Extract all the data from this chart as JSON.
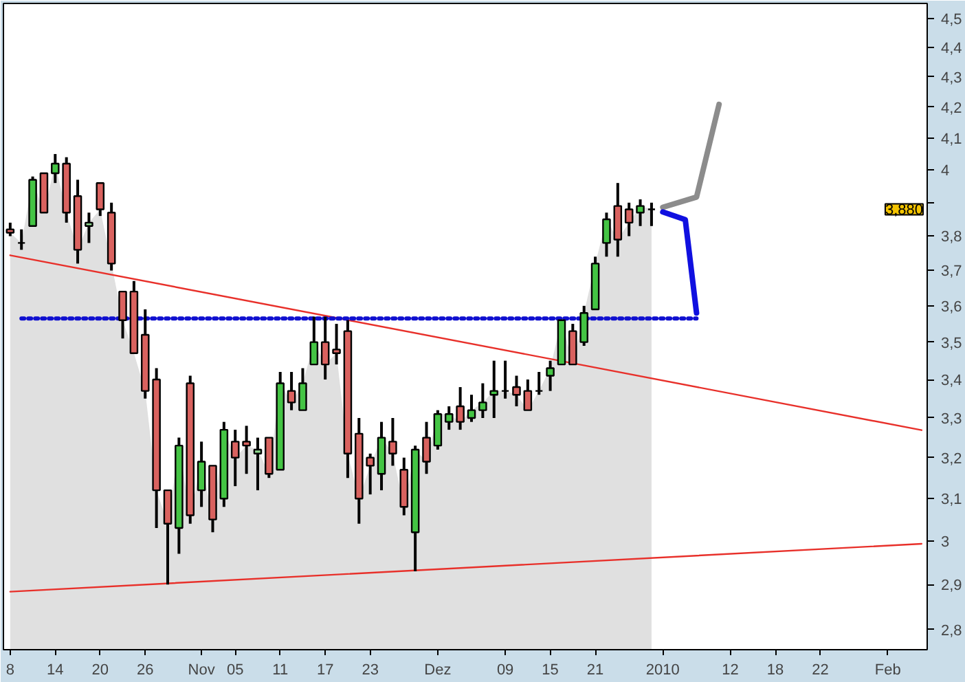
{
  "chart_data": {
    "type": "candlestick",
    "log": true,
    "categories": [
      "8",
      null,
      null,
      null,
      "14",
      null,
      null,
      null,
      "20",
      null,
      null,
      null,
      "26",
      null,
      null,
      null,
      null,
      "Nov",
      null,
      null,
      "05",
      null,
      null,
      null,
      "11",
      null,
      null,
      null,
      "17",
      null,
      null,
      null,
      "23",
      null,
      null,
      null,
      null,
      null,
      "Dez",
      null,
      null,
      null,
      null,
      null,
      "09",
      null,
      null,
      null,
      "15",
      null,
      null,
      null,
      "21",
      null,
      null,
      null,
      null,
      null,
      "2010",
      null,
      null,
      null,
      null,
      null,
      "12",
      null,
      null,
      null,
      "18",
      null,
      null,
      null,
      "22",
      null,
      null,
      null,
      null,
      null,
      "Feb",
      null,
      null,
      null
    ],
    "ohlc": [
      [
        3.82,
        3.84,
        3.8,
        3.81
      ],
      [
        3.78,
        3.82,
        3.76,
        3.78
      ],
      [
        3.83,
        3.98,
        3.83,
        3.97
      ],
      [
        3.99,
        3.99,
        3.87,
        3.87
      ],
      [
        3.99,
        4.05,
        3.96,
        4.02
      ],
      [
        4.02,
        4.04,
        3.84,
        3.87
      ],
      [
        3.92,
        3.97,
        3.72,
        3.76
      ],
      [
        3.83,
        3.87,
        3.78,
        3.84
      ],
      [
        3.96,
        3.96,
        3.86,
        3.88
      ],
      [
        3.87,
        3.9,
        3.7,
        3.72
      ],
      [
        3.64,
        3.64,
        3.51,
        3.56
      ],
      [
        3.64,
        3.67,
        3.47,
        3.47
      ],
      [
        3.52,
        3.59,
        3.35,
        3.37
      ],
      [
        3.4,
        3.43,
        3.03,
        3.12
      ],
      [
        3.12,
        3.12,
        2.9,
        3.04
      ],
      [
        3.03,
        3.25,
        2.97,
        3.23
      ],
      [
        3.39,
        3.41,
        3.04,
        3.06
      ],
      [
        3.12,
        3.24,
        3.08,
        3.19
      ],
      [
        3.18,
        3.18,
        3.02,
        3.05
      ],
      [
        3.1,
        3.29,
        3.08,
        3.27
      ],
      [
        3.24,
        3.27,
        3.13,
        3.2
      ],
      [
        3.24,
        3.28,
        3.16,
        3.23
      ],
      [
        3.21,
        3.25,
        3.12,
        3.22
      ],
      [
        3.25,
        3.25,
        3.15,
        3.16
      ],
      [
        3.17,
        3.42,
        3.17,
        3.39
      ],
      [
        3.37,
        3.42,
        3.32,
        3.34
      ],
      [
        3.32,
        3.43,
        3.32,
        3.39
      ],
      [
        3.44,
        3.57,
        3.44,
        3.5
      ],
      [
        3.5,
        3.57,
        3.4,
        3.44
      ],
      [
        3.48,
        3.55,
        3.44,
        3.47
      ],
      [
        3.53,
        3.56,
        3.15,
        3.21
      ],
      [
        3.26,
        3.3,
        3.04,
        3.1
      ],
      [
        3.2,
        3.21,
        3.11,
        3.18
      ],
      [
        3.16,
        3.29,
        3.12,
        3.25
      ],
      [
        3.24,
        3.3,
        3.18,
        3.21
      ],
      [
        3.17,
        3.2,
        3.06,
        3.08
      ],
      [
        3.02,
        3.23,
        2.93,
        3.22
      ],
      [
        3.25,
        3.29,
        3.16,
        3.19
      ],
      [
        3.23,
        3.32,
        3.22,
        3.31
      ],
      [
        3.29,
        3.33,
        3.27,
        3.31
      ],
      [
        3.33,
        3.38,
        3.27,
        3.29
      ],
      [
        3.3,
        3.36,
        3.29,
        3.32
      ],
      [
        3.32,
        3.39,
        3.3,
        3.34
      ],
      [
        3.36,
        3.45,
        3.3,
        3.37
      ],
      [
        3.37,
        3.45,
        3.35,
        3.37
      ],
      [
        3.38,
        3.41,
        3.33,
        3.36
      ],
      [
        3.37,
        3.4,
        3.32,
        3.32
      ],
      [
        3.37,
        3.42,
        3.36,
        3.37
      ],
      [
        3.41,
        3.45,
        3.37,
        3.43
      ],
      [
        3.44,
        3.56,
        3.44,
        3.56
      ],
      [
        3.53,
        3.55,
        3.44,
        3.44
      ],
      [
        3.5,
        3.6,
        3.49,
        3.58
      ],
      [
        3.59,
        3.74,
        3.59,
        3.72
      ],
      [
        3.78,
        3.87,
        3.74,
        3.85
      ],
      [
        3.89,
        3.96,
        3.74,
        3.79
      ],
      [
        3.88,
        3.9,
        3.8,
        3.84
      ],
      [
        3.87,
        3.91,
        3.83,
        3.89
      ],
      [
        3.88,
        3.9,
        3.83,
        3.88
      ],
      null,
      null,
      null,
      null,
      null,
      null,
      null,
      null,
      null,
      null,
      null,
      null,
      null,
      null,
      null,
      null,
      null,
      null,
      null,
      null,
      null,
      null,
      null,
      null
    ],
    "colors": [
      "#d9625f",
      "#000000",
      "#44c444",
      "#d9625f",
      "#44c444",
      "#d9625f",
      "#d9625f",
      "#8fd88f",
      "#d9625f",
      "#d9625f",
      "#d9625f",
      "#d9625f",
      "#d9625f",
      "#d9625f",
      "#d9625f",
      "#44c444",
      "#d9625f",
      "#44c444",
      "#d9625f",
      "#44c444",
      "#d9625f",
      "#d9625f",
      "#8fd88f",
      "#d9625f",
      "#44c444",
      "#d9625f",
      "#44c444",
      "#44c444",
      "#d9625f",
      "#d9625f",
      "#d9625f",
      "#d9625f",
      "#d9625f",
      "#44c444",
      "#d9625f",
      "#d9625f",
      "#44c444",
      "#d9625f",
      "#44c444",
      "#44c444",
      "#d9625f",
      "#44c444",
      "#44c444",
      "#44c444",
      "#000000",
      "#d9625f",
      "#d9625f",
      "#000000",
      "#44c444",
      "#44c444",
      "#d9625f",
      "#44c444",
      "#44c444",
      "#44c444",
      "#d9625f",
      "#d9625f",
      "#44c444",
      "#000000",
      null,
      null,
      null,
      null,
      null,
      null,
      null,
      null,
      null,
      null,
      null,
      null,
      null,
      null,
      null,
      null,
      null,
      null,
      null,
      null,
      null,
      null,
      null,
      null
    ],
    "series": [
      {
        "type": "area",
        "color": "#e0e0e0",
        "values": [
          3.81,
          3.78,
          3.97,
          3.87,
          4.02,
          3.87,
          3.76,
          3.84,
          3.88,
          3.72,
          3.56,
          3.47,
          3.37,
          3.12,
          3.04,
          3.23,
          3.06,
          3.19,
          3.05,
          3.27,
          3.2,
          3.23,
          3.22,
          3.16,
          3.39,
          3.34,
          3.39,
          3.5,
          3.44,
          3.47,
          3.21,
          3.1,
          3.18,
          3.25,
          3.21,
          3.08,
          3.22,
          3.19,
          3.31,
          3.31,
          3.29,
          3.32,
          3.34,
          3.37,
          3.37,
          3.36,
          3.32,
          3.37,
          3.43,
          3.56,
          3.44,
          3.58,
          3.72,
          3.85,
          3.79,
          3.84,
          3.89,
          3.88,
          null,
          null,
          null,
          null,
          null,
          null,
          null,
          null,
          null,
          null,
          null,
          null,
          null,
          null,
          null,
          null,
          null,
          null,
          null,
          null,
          null,
          null,
          null,
          null
        ]
      },
      {
        "type": "line",
        "color": "#e8302a",
        "line_style": "solid",
        "values": [
          3.744,
          null,
          null,
          null,
          null,
          null,
          null,
          null,
          null,
          null,
          null,
          null,
          null,
          null,
          null,
          null,
          null,
          null,
          null,
          null,
          null,
          null,
          null,
          null,
          null,
          null,
          null,
          null,
          null,
          null,
          null,
          null,
          null,
          null,
          null,
          null,
          null,
          null,
          null,
          null,
          null,
          null,
          null,
          null,
          null,
          null,
          null,
          null,
          null,
          null,
          null,
          null,
          null,
          null,
          null,
          null,
          null,
          null,
          null,
          null,
          null,
          null,
          null,
          null,
          null,
          null,
          null,
          null,
          null,
          null,
          null,
          null,
          null,
          null,
          null,
          null,
          null,
          null,
          null,
          null,
          null,
          3.269
        ]
      },
      {
        "type": "line",
        "color": "#e8302a",
        "line_style": "solid",
        "values": [
          2.884,
          null,
          null,
          null,
          null,
          null,
          null,
          null,
          null,
          null,
          null,
          null,
          null,
          null,
          null,
          null,
          null,
          null,
          null,
          null,
          null,
          null,
          null,
          null,
          null,
          null,
          null,
          null,
          null,
          null,
          null,
          null,
          null,
          null,
          null,
          null,
          null,
          null,
          null,
          null,
          null,
          null,
          null,
          null,
          null,
          null,
          null,
          null,
          null,
          null,
          null,
          null,
          null,
          null,
          null,
          null,
          null,
          null,
          null,
          null,
          null,
          null,
          null,
          null,
          null,
          null,
          null,
          null,
          null,
          null,
          null,
          null,
          null,
          null,
          null,
          null,
          null,
          null,
          null,
          null,
          null,
          2.993
        ]
      },
      {
        "type": "line",
        "color": "#1010d0",
        "line_style": "dotted",
        "values": [
          null,
          3.565,
          null,
          null,
          null,
          null,
          null,
          null,
          null,
          null,
          null,
          null,
          null,
          null,
          null,
          null,
          null,
          null,
          null,
          null,
          null,
          null,
          null,
          null,
          null,
          null,
          null,
          null,
          null,
          null,
          null,
          null,
          null,
          null,
          null,
          null,
          null,
          null,
          null,
          null,
          null,
          null,
          null,
          null,
          null,
          null,
          null,
          null,
          null,
          null,
          null,
          null,
          null,
          null,
          null,
          null,
          null,
          null,
          null,
          null,
          null,
          3.565,
          null,
          null,
          null,
          null,
          null,
          null,
          null,
          null,
          null,
          null,
          null,
          null,
          null,
          null,
          null,
          null,
          null,
          null,
          null,
          null
        ]
      },
      {
        "type": "line",
        "color": "#8c8c8c",
        "line_style": "solid",
        "values": [
          null,
          null,
          null,
          null,
          null,
          null,
          null,
          null,
          null,
          null,
          null,
          null,
          null,
          null,
          null,
          null,
          null,
          null,
          null,
          null,
          null,
          null,
          null,
          null,
          null,
          null,
          null,
          null,
          null,
          null,
          null,
          null,
          null,
          null,
          null,
          null,
          null,
          null,
          null,
          null,
          null,
          null,
          null,
          null,
          null,
          null,
          null,
          null,
          null,
          null,
          null,
          null,
          null,
          null,
          null,
          null,
          null,
          null,
          3.886,
          null,
          null,
          3.917,
          null,
          4.209,
          null,
          null,
          null,
          null,
          null,
          null,
          null,
          null,
          null,
          null,
          null,
          null,
          null,
          null,
          null,
          null,
          null,
          null
        ]
      },
      {
        "type": "line",
        "color": "#1010e0",
        "line_style": "solid",
        "values": [
          null,
          null,
          null,
          null,
          null,
          null,
          null,
          null,
          null,
          null,
          null,
          null,
          null,
          null,
          null,
          null,
          null,
          null,
          null,
          null,
          null,
          null,
          null,
          null,
          null,
          null,
          null,
          null,
          null,
          null,
          null,
          null,
          null,
          null,
          null,
          null,
          null,
          null,
          null,
          null,
          null,
          null,
          null,
          null,
          null,
          null,
          null,
          null,
          null,
          null,
          null,
          null,
          null,
          null,
          null,
          null,
          null,
          null,
          3.872,
          null,
          3.849,
          3.58,
          null,
          null,
          null,
          null,
          null,
          null,
          null,
          null,
          null,
          null,
          null,
          null,
          null,
          null,
          null,
          null,
          null,
          null,
          null,
          null
        ]
      }
    ],
    "ylim": [
      2.757,
      4.552
    ],
    "yticks": [
      {
        "value": 2.8,
        "label": "2,8"
      },
      {
        "value": 2.9,
        "label": "2,9"
      },
      3,
      {
        "value": 3.1,
        "label": "3,1"
      },
      {
        "value": 3.2,
        "label": "3,2"
      },
      {
        "value": 3.3,
        "label": "3,3"
      },
      {
        "value": 3.4,
        "label": "3,4"
      },
      {
        "value": 3.5,
        "label": "3,5"
      },
      {
        "value": 3.6,
        "label": "3,6"
      },
      {
        "value": 3.7,
        "label": "3,7"
      },
      {
        "value": 3.8,
        "label": "3,8"
      },
      {
        "value": 3.9,
        "label": null
      },
      4,
      {
        "value": 4.1,
        "label": "4,1"
      },
      {
        "value": 4.2,
        "label": "4,2"
      },
      {
        "value": 4.3,
        "label": "4,3"
      },
      {
        "value": 4.4,
        "label": "4,4"
      },
      {
        "value": 4.5,
        "label": "4,5"
      }
    ],
    "annotations": [
      "3,880"
    ]
  }
}
